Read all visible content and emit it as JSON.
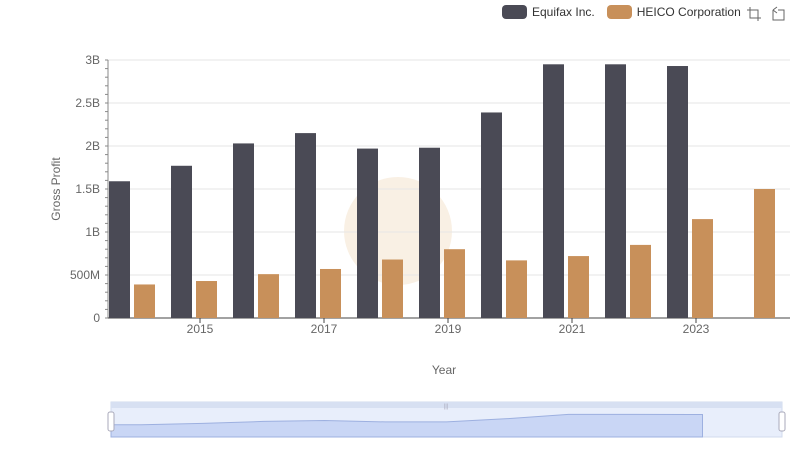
{
  "legend": {
    "items": [
      {
        "label": "Equifax Inc.",
        "color": "#4a4a55"
      },
      {
        "label": "HEICO Corporation",
        "color": "#c8905a"
      }
    ]
  },
  "toolbox": {
    "icons": [
      "zoom-icon",
      "restore-icon"
    ]
  },
  "chart_data": {
    "type": "bar",
    "xlabel": "Year",
    "ylabel": "Gross Profit",
    "ylim": [
      0,
      3000000000
    ],
    "yticks": [
      {
        "value": 0,
        "label": "0"
      },
      {
        "value": 500000000,
        "label": "500M"
      },
      {
        "value": 1000000000,
        "label": "1B"
      },
      {
        "value": 1500000000,
        "label": "1.5B"
      },
      {
        "value": 2000000000,
        "label": "2B"
      },
      {
        "value": 2500000000,
        "label": "2.5B"
      },
      {
        "value": 3000000000,
        "label": "3B"
      }
    ],
    "categories": [
      "2014",
      "2015",
      "2016",
      "2017",
      "2018",
      "2019",
      "2020",
      "2021",
      "2022",
      "2023",
      "2024"
    ],
    "xtick_labels": [
      "2015",
      "2017",
      "2019",
      "2021",
      "2023"
    ],
    "series": [
      {
        "name": "Equifax Inc.",
        "color": "#4a4a55",
        "values": [
          1590000000,
          1770000000,
          2030000000,
          2150000000,
          1970000000,
          1980000000,
          2390000000,
          2950000000,
          2950000000,
          2930000000,
          null
        ]
      },
      {
        "name": "HEICO Corporation",
        "color": "#c8905a",
        "values": [
          390000000,
          430000000,
          510000000,
          570000000,
          680000000,
          800000000,
          670000000,
          720000000,
          850000000,
          1150000000,
          1500000000
        ]
      }
    ],
    "grid": true,
    "legend_position": "top-right",
    "datazoom": {
      "range": [
        0,
        100
      ]
    }
  }
}
